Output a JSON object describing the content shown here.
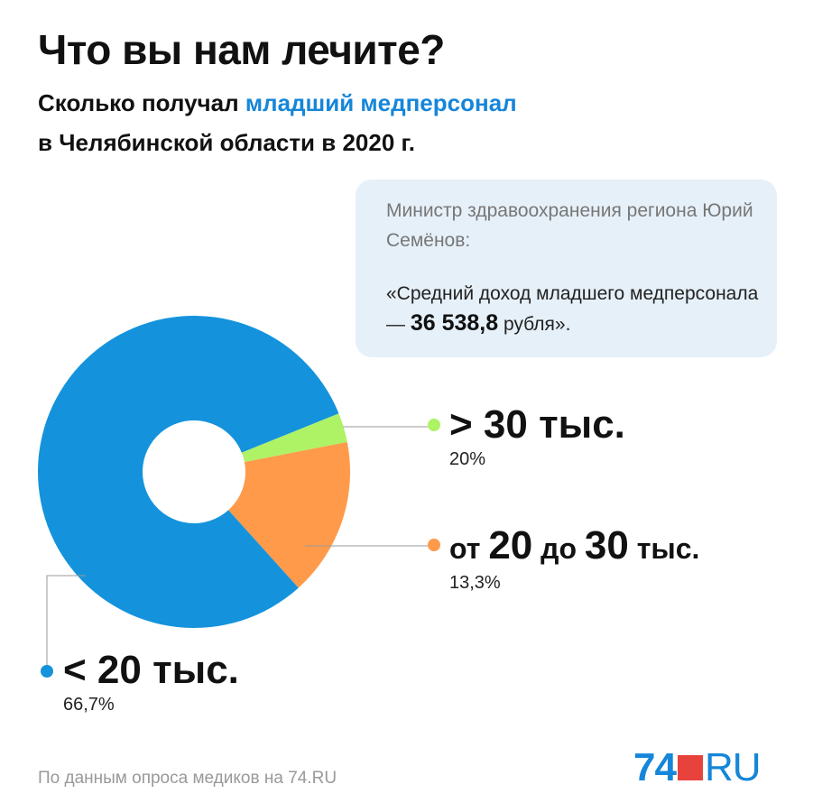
{
  "title": "Что вы нам лечите?",
  "subtitle": {
    "part1": "Сколько получал ",
    "highlight": "младший медперсонал",
    "line2": "в Челябинской области в 2020 г."
  },
  "quote": {
    "speaker": "Министр здравоохранения региона Юрий Семёнов:",
    "text_before": "«Средний доход младшего медперсонала — ",
    "value": "36 538,8",
    "text_after": " рубля»."
  },
  "chart_data": {
    "type": "pie",
    "donut": true,
    "slices": [
      {
        "label": "< 20 тыс.",
        "value_label": "66,7%",
        "color": "#1493dc"
      },
      {
        "label": "> 30 тыс.",
        "value_label": "20%",
        "color": "#aef266"
      },
      {
        "label": "от 20 до 30 тыс.",
        "value_label": "13,3%",
        "color": "#ff9a4a"
      }
    ]
  },
  "legend": {
    "over30": {
      "label": "> 30 тыс.",
      "value": "20%"
    },
    "mid_prefix": "от ",
    "mid_a": "20",
    "mid_middle": " до ",
    "mid_b": "30",
    "mid_suffix": " тыс.",
    "mid_value": "13,3%",
    "under20": {
      "label": "< 20 тыс.",
      "value": "66,7%"
    }
  },
  "source": "По данным опроса медиков на 74.RU",
  "logo": {
    "num": "74",
    "dom": "RU"
  },
  "colors": {
    "accent": "#1586d9",
    "quote_bg": "#e6f0f8",
    "logo_red": "#e8423c"
  }
}
